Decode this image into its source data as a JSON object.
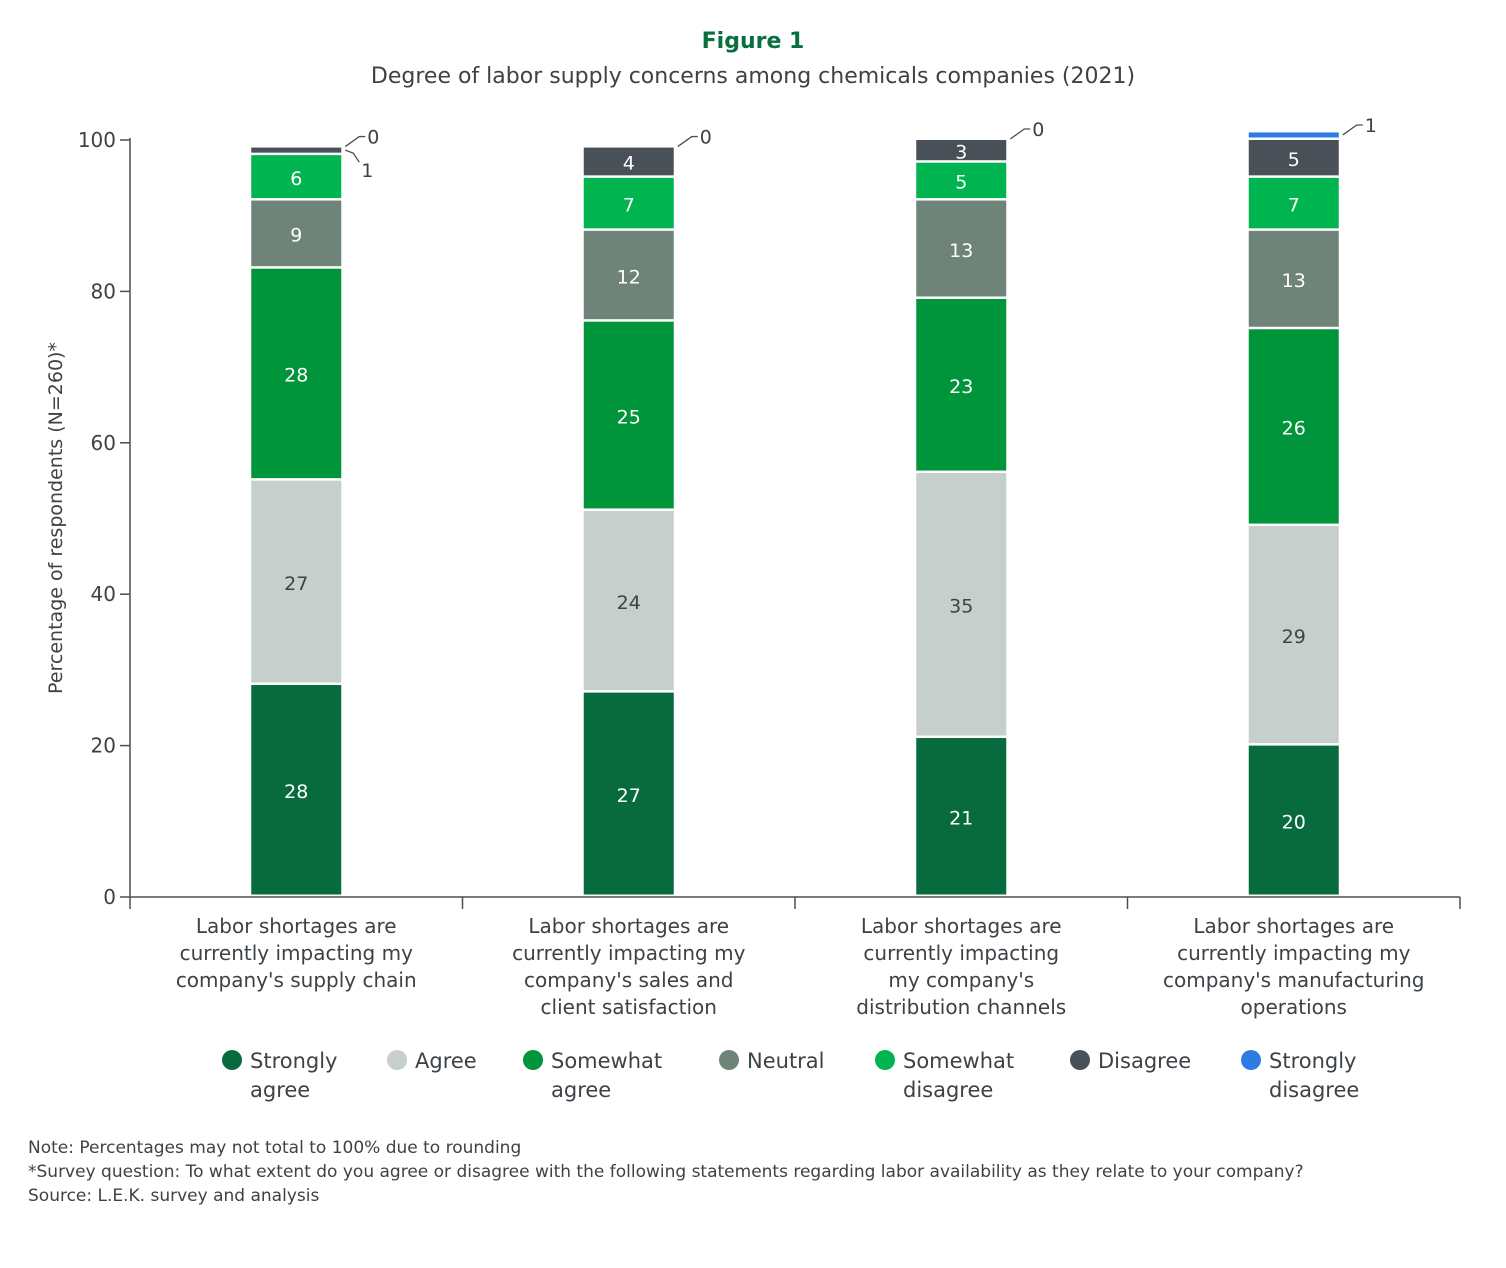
{
  "figure_label": "Figure 1",
  "notes": {
    "note": "Note: Percentages may not total to 100% due to rounding",
    "survey": "*Survey question: To what extent do you agree or disagree with the following statements regarding labor availability as they relate to your company?",
    "source": "Source: L.E.K. survey and analysis"
  },
  "chart_data": {
    "type": "bar",
    "stacked": true,
    "title": "Degree of labor supply concerns among chemicals companies (2021)",
    "xlabel": "",
    "ylabel": "Percentage of respondents (N=260)*",
    "ylim": [
      0,
      100
    ],
    "yticks": [
      0,
      20,
      40,
      60,
      80,
      100
    ],
    "grid": false,
    "legend_position": "bottom",
    "categories": [
      [
        "Labor shortages are",
        "currently impacting my",
        "company's supply chain"
      ],
      [
        "Labor shortages are",
        "currently impacting my",
        "company's sales and",
        "client satisfaction"
      ],
      [
        "Labor shortages are",
        "currently impacting",
        "my company's",
        "distribution channels"
      ],
      [
        "Labor shortages are",
        "currently impacting my",
        "company's manufacturing",
        "operations"
      ]
    ],
    "series": [
      {
        "name": "Strongly agree",
        "legend": [
          "Strongly",
          "agree"
        ],
        "color": "#086b3d",
        "label_color": "#ffffff",
        "values": [
          28,
          27,
          21,
          20
        ]
      },
      {
        "name": "Agree",
        "legend": [
          "Agree"
        ],
        "color": "#c6cfcc",
        "label_color": "#3d4247",
        "values": [
          27,
          24,
          35,
          29
        ]
      },
      {
        "name": "Somewhat agree",
        "legend": [
          "Somewhat",
          "agree"
        ],
        "color": "#00953a",
        "label_color": "#ffffff",
        "values": [
          28,
          25,
          23,
          26
        ]
      },
      {
        "name": "Neutral",
        "legend": [
          "Neutral"
        ],
        "color": "#6e8479",
        "label_color": "#ffffff",
        "values": [
          9,
          12,
          13,
          13
        ]
      },
      {
        "name": "Somewhat disagree",
        "legend": [
          "Somewhat",
          "disagree"
        ],
        "color": "#00b44f",
        "label_color": "#ffffff",
        "values": [
          6,
          7,
          5,
          7
        ]
      },
      {
        "name": "Disagree",
        "legend": [
          "Disagree"
        ],
        "color": "#4a5058",
        "label_color": "#ffffff",
        "values": [
          1,
          4,
          3,
          5
        ]
      },
      {
        "name": "Strongly disagree",
        "legend": [
          "Strongly",
          "disagree"
        ],
        "color": "#2b7de3",
        "label_color": "#ffffff",
        "values": [
          0,
          0,
          0,
          1
        ]
      }
    ]
  }
}
